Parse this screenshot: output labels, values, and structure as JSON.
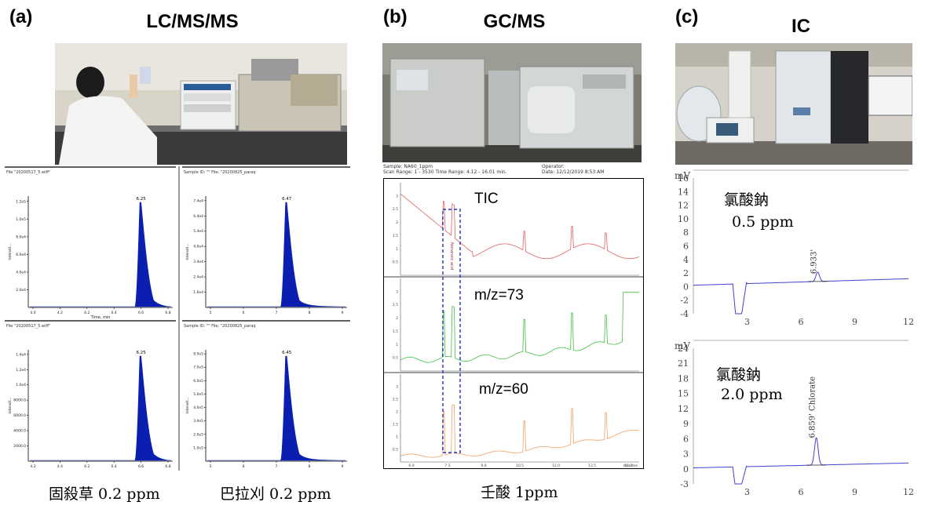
{
  "panels": {
    "a": {
      "letter": "(a)",
      "title": "LC/MS/MS"
    },
    "b": {
      "letter": "(b)",
      "title": "GC/MS"
    },
    "c": {
      "letter": "(c)",
      "title": "IC"
    }
  },
  "captions": {
    "a_left": "固殺草 0.2 ppm",
    "a_right": "巴拉刈 0.2 ppm",
    "b": "壬酸 1ppm"
  },
  "lc": {
    "header_tl": "File \"20200517_5.wiff\"",
    "header_tl2": "Sample ID: \"\"  File: \"20200825_paraq",
    "ylabel": "Intensit...",
    "xlabel": "Time, min"
  },
  "gc": {
    "header_sample": "Sample: NA60_1ppm",
    "header_scan": "Scan Range: 1 - 3530  Time Range: 4.12 - 16.01 min.",
    "header_operator": "Operator:",
    "header_date": "Date: 12/12/2019 8:53 AM",
    "label_tic": "TIC",
    "label_73": "m/z=73",
    "label_60": "m/z=60",
    "peak_name": "Nonanoic acid",
    "xunit": "minutes"
  },
  "ic": {
    "top_label_1": "氯酸鈉",
    "top_label_2": "0.5 ppm",
    "bot_label_1": "氯酸鈉",
    "bot_label_2": "2.0 ppm",
    "top_peak": "6.933'",
    "bot_peak": "6.859' Chlorate",
    "unit": "mV"
  },
  "chart_data": [
    {
      "type": "line",
      "id": "lc_glufosinate_1",
      "peak_label": "6.25",
      "yticks": [
        "2.0e4",
        "4.0e4",
        "6.0e4",
        "8.0e4",
        "1.0e5",
        "1.2e5"
      ],
      "xticks": [
        "4.0",
        "4.2",
        "6.2",
        "6.4",
        "6.6",
        "6.8"
      ],
      "peak_x": 6.25
    },
    {
      "type": "line",
      "id": "lc_paraquat_1",
      "peak_label": "6.47",
      "yticks": [
        "1.6e4",
        "2.4e4",
        "3.4e4",
        "4.0e4",
        "5.4e4",
        "6.4e4",
        "7.4e4"
      ],
      "xticks": [
        "5",
        "6",
        "7",
        "8",
        "9"
      ],
      "peak_x": 6.47
    },
    {
      "type": "line",
      "id": "lc_glufosinate_2",
      "peak_label": "6.25",
      "yticks": [
        "2000.0",
        "4000.0",
        "6000.0",
        "8000.0",
        "1.0e4",
        "1.2e4",
        "1.4e4"
      ],
      "xticks": [
        "4.2",
        "4.4",
        "6.2",
        "6.4",
        "6.6",
        "6.8"
      ],
      "peak_x": 6.25
    },
    {
      "type": "line",
      "id": "lc_paraquat_2",
      "peak_label": "6.45",
      "yticks": [
        "1.0e5",
        "2.0e5",
        "3.0e5",
        "4.0e5",
        "5.0e5",
        "6.0e5",
        "7.0e5",
        "8.0e5"
      ],
      "xticks": [
        "5",
        "6",
        "7",
        "8",
        "9"
      ],
      "peak_x": 6.45
    },
    {
      "type": "line",
      "id": "ic_top",
      "yticks": [
        16,
        14,
        12,
        10,
        8,
        6,
        4,
        2,
        0,
        -2,
        -4
      ],
      "xticks": [
        "3",
        "6",
        "9",
        "12"
      ],
      "ylim": [
        -4,
        16
      ],
      "xlim": [
        0,
        12
      ],
      "peak_x": 6.933
    },
    {
      "type": "line",
      "id": "ic_bottom",
      "yticks": [
        24,
        21,
        18,
        15,
        12,
        9,
        6,
        3,
        0,
        -3
      ],
      "xticks": [
        "3",
        "6",
        "9",
        "12"
      ],
      "ylim": [
        -3,
        24
      ],
      "xlim": [
        0,
        12
      ],
      "peak_x": 6.859
    }
  ]
}
